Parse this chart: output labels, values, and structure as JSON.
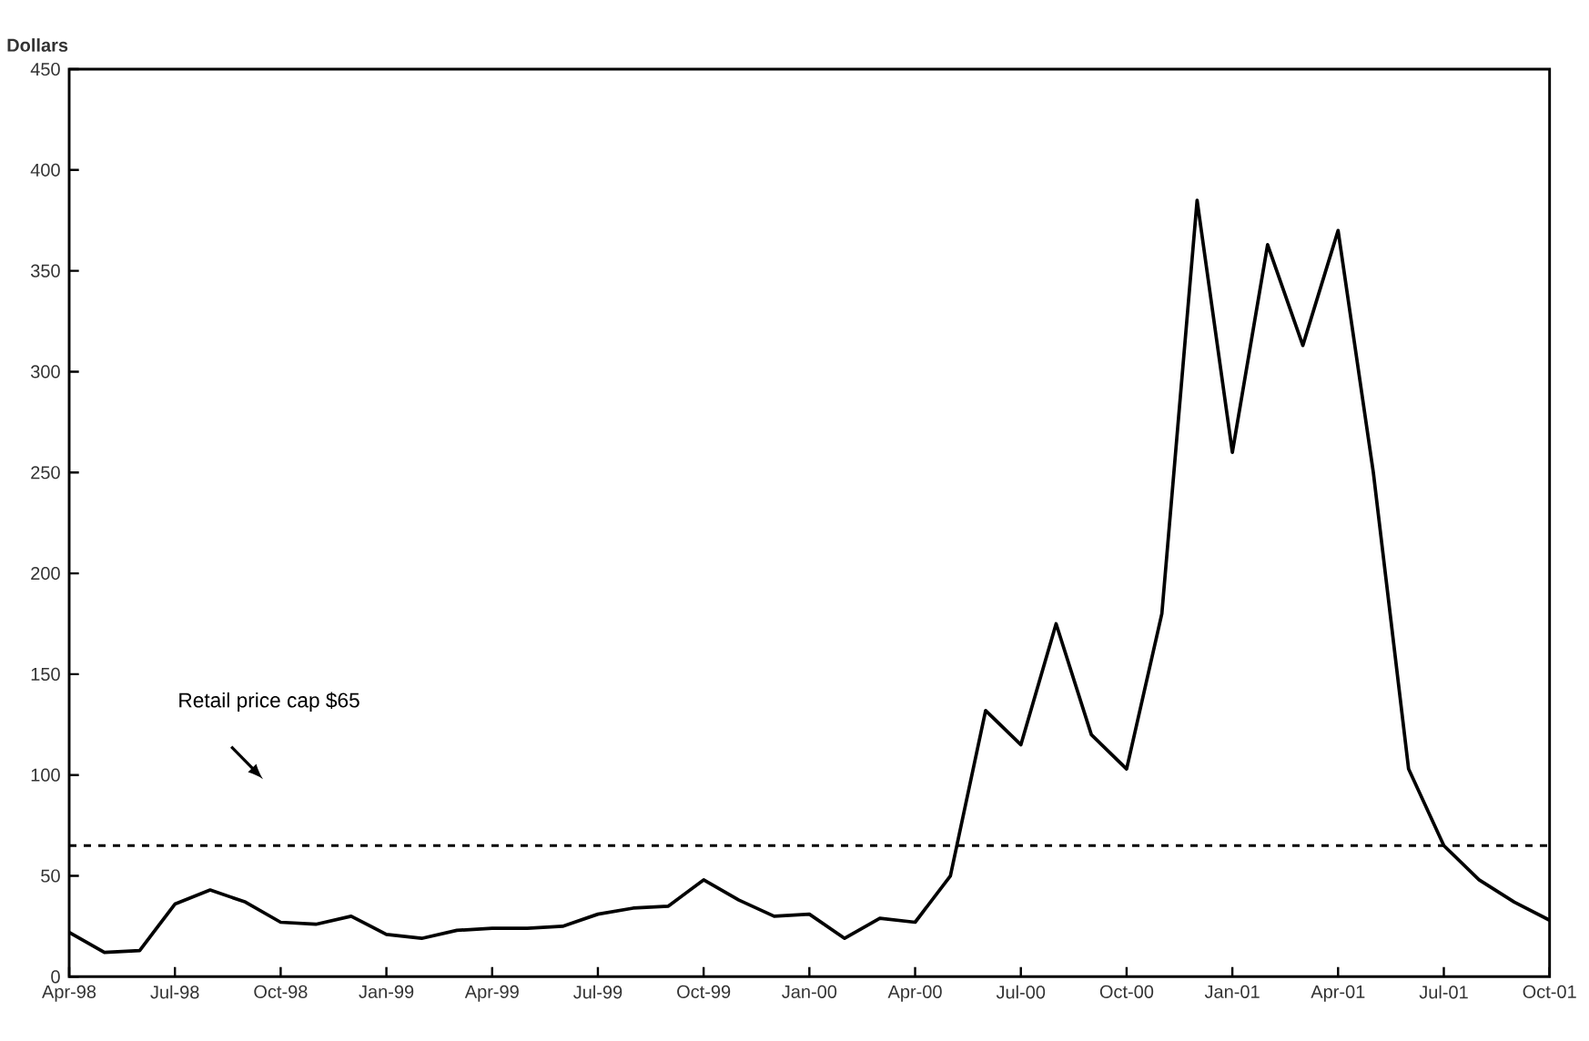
{
  "chart_data": {
    "type": "line",
    "ylabel": "Dollars",
    "categories": [
      "Apr-98",
      null,
      null,
      "Jul-98",
      null,
      null,
      "Oct-98",
      null,
      null,
      "Jan-99",
      null,
      null,
      "Apr-99",
      null,
      null,
      "Jul-99",
      null,
      null,
      "Oct-99",
      null,
      null,
      "Jan-00",
      null,
      null,
      "Apr-00",
      null,
      null,
      "Jul-00",
      null,
      null,
      "Oct-00",
      null,
      null,
      "Jan-01",
      null,
      null,
      "Apr-01",
      null,
      null,
      "Jul-01",
      null,
      null,
      "Oct-01"
    ],
    "series": [
      {
        "color": "#000000",
        "values": [
          22,
          12,
          13,
          36,
          43,
          37,
          27,
          26,
          30,
          21,
          19,
          23,
          24,
          24,
          25,
          31,
          34,
          35,
          48,
          38,
          30,
          31,
          19,
          29,
          27,
          50,
          132,
          115,
          175,
          120,
          103,
          180,
          385,
          260,
          363,
          313,
          370,
          250,
          103,
          65,
          48,
          37,
          28
        ]
      }
    ],
    "ylim": [
      0,
      450
    ],
    "yticks": [
      0,
      50,
      100,
      150,
      200,
      250,
      300,
      350,
      400,
      450
    ],
    "ref_lines": [
      {
        "axis": "y",
        "value": 65,
        "label": "Retail price cap $65",
        "color": "#000000",
        "line_style": "dashed"
      }
    ],
    "grid": false,
    "marker": "none",
    "line_style": "solid"
  }
}
